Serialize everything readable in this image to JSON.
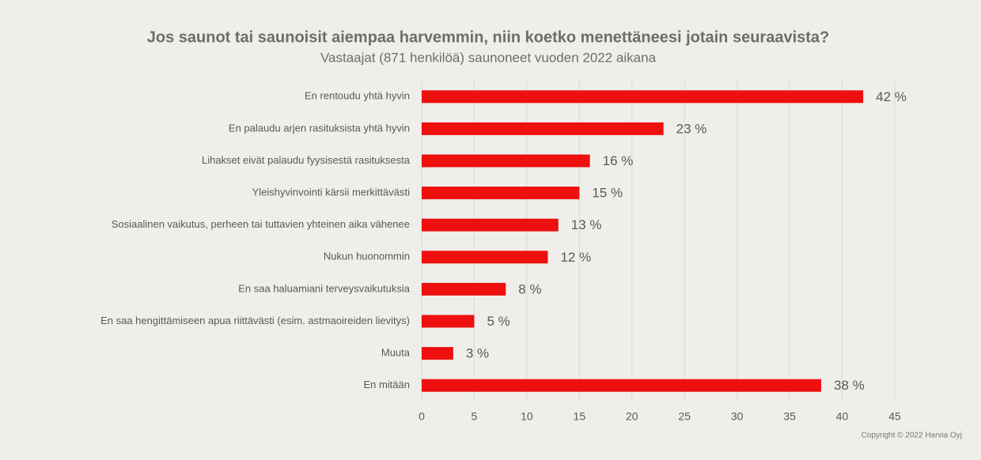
{
  "chart_data": {
    "type": "barh",
    "title": "Jos saunot tai saunoisit aiempaa harvemmin, niin koetko menettäneesi jotain seuraavista?",
    "subtitle": "Vastaajat (871 henkilöä) saunoneet vuoden 2022 aikana",
    "categories": [
      "En rentoudu yhtä hyvin",
      "En palaudu arjen rasituksista yhtä hyvin",
      "Lihakset eivät palaudu fyysisestä rasituksesta",
      "Yleishyvinvointi kärsii merkittävästi",
      "Sosiaalinen vaikutus, perheen tai tuttavien yhteinen aika vähenee",
      "Nukun huonommin",
      "En saa haluamiani terveysvaikutuksia",
      "En saa hengittämiseen apua riittävästi (esim. astmaoireiden lievitys)",
      "Muuta",
      "En mitään"
    ],
    "values": [
      42,
      23,
      16,
      15,
      13,
      12,
      8,
      5,
      3,
      38
    ],
    "value_labels": [
      "42 %",
      "23 %",
      "16 %",
      "15 %",
      "13 %",
      "12 %",
      "8 %",
      "5 %",
      "3 %",
      "38 %"
    ],
    "color": "#ee0f0f",
    "xlim": [
      0,
      45
    ],
    "xticks": [
      0,
      5,
      10,
      15,
      20,
      25,
      30,
      35,
      40,
      45
    ],
    "grid": true,
    "copyright": "Copyright © 2022 Harvia Oyj"
  }
}
